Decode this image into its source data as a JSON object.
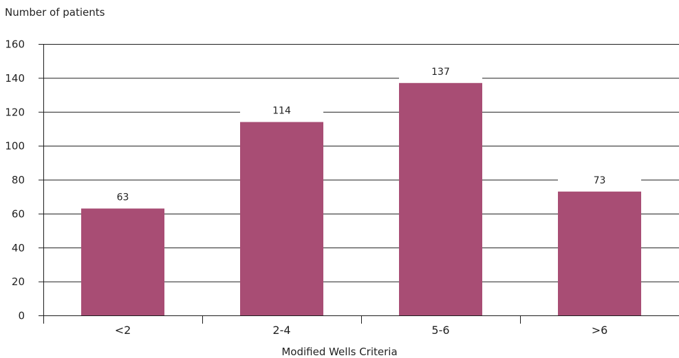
{
  "chart_data": {
    "type": "bar",
    "xlabel": "Modified Wells Criteria",
    "ylabel": "Number of patients",
    "categories": [
      "<2",
      "2-4",
      "5-6",
      ">6"
    ],
    "values": [
      63,
      114,
      137,
      73
    ],
    "data_labels": [
      "63",
      "114",
      "137",
      "73"
    ],
    "ylim": [
      0,
      160
    ],
    "yticks": [
      0,
      20,
      40,
      60,
      80,
      100,
      120,
      140,
      160
    ],
    "grid": true,
    "bar_color": "#a84d74",
    "grid_color": "#1a1a1a"
  }
}
